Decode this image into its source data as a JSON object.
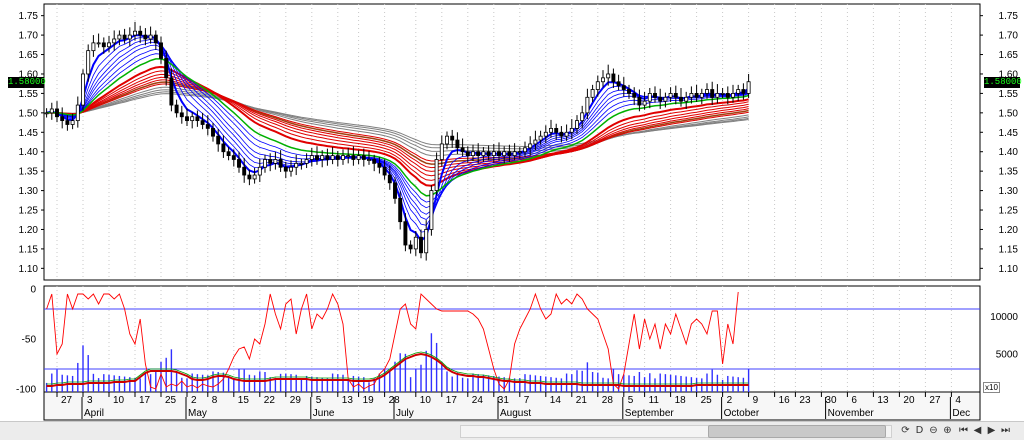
{
  "chart_data": [
    {
      "type": "candlestick",
      "title": "",
      "indicator": "GMMA",
      "last_price_label": "1.58000",
      "y_ticks": [
        "1.75",
        "1.70",
        "1.65",
        "1.60",
        "1.55",
        "1.50",
        "1.45",
        "1.40",
        "1.35",
        "1.30",
        "1.25",
        "1.20",
        "1.15",
        "1.10"
      ],
      "ylim": [
        1.07,
        1.78
      ],
      "grid": "vertical dotted",
      "close": [
        1.5,
        1.51,
        1.49,
        1.48,
        1.47,
        1.48,
        1.52,
        1.6,
        1.66,
        1.68,
        1.68,
        1.67,
        1.68,
        1.69,
        1.7,
        1.69,
        1.7,
        1.71,
        1.7,
        1.69,
        1.7,
        1.68,
        1.64,
        1.59,
        1.52,
        1.5,
        1.49,
        1.48,
        1.49,
        1.48,
        1.47,
        1.46,
        1.44,
        1.42,
        1.4,
        1.39,
        1.38,
        1.36,
        1.34,
        1.33,
        1.34,
        1.36,
        1.38,
        1.37,
        1.38,
        1.36,
        1.35,
        1.36,
        1.37,
        1.37,
        1.38,
        1.39,
        1.38,
        1.39,
        1.38,
        1.39,
        1.38,
        1.39,
        1.39,
        1.38,
        1.39,
        1.38,
        1.38,
        1.37,
        1.36,
        1.34,
        1.32,
        1.28,
        1.22,
        1.16,
        1.15,
        1.18,
        1.14,
        1.2,
        1.3,
        1.38,
        1.42,
        1.44,
        1.43,
        1.41,
        1.4,
        1.39,
        1.4,
        1.39,
        1.4,
        1.39,
        1.4,
        1.39,
        1.4,
        1.39,
        1.4,
        1.4,
        1.41,
        1.42,
        1.43,
        1.44,
        1.45,
        1.46,
        1.45,
        1.44,
        1.45,
        1.46,
        1.48,
        1.5,
        1.54,
        1.56,
        1.58,
        1.59,
        1.6,
        1.58,
        1.57,
        1.56,
        1.55,
        1.54,
        1.52,
        1.53,
        1.55,
        1.54,
        1.53,
        1.54,
        1.55,
        1.54,
        1.53,
        1.54,
        1.55,
        1.54,
        1.55,
        1.56,
        1.54,
        1.55,
        1.55,
        1.54,
        1.55,
        1.56,
        1.55,
        1.58
      ],
      "short_emas": [
        "ema3",
        "ema5",
        "ema8",
        "ema10",
        "ema12",
        "ema15"
      ],
      "long_emas": [
        "ema30",
        "ema35",
        "ema40",
        "ema45",
        "ema50",
        "ema60"
      ]
    },
    {
      "type": "line",
      "indicator": "oscillator",
      "y_ticks_left": [
        "0",
        "-50",
        "-100"
      ],
      "ylim_left": [
        -103,
        3
      ],
      "y_ticks_right": [
        "10000",
        "5000"
      ],
      "ylim_right": [
        0,
        14000
      ],
      "volume_multiplier_label": "x10",
      "reference_lines": [
        -20,
        -80
      ],
      "oscillator": [
        -20,
        -5,
        -65,
        -55,
        -5,
        -20,
        -5,
        -5,
        -10,
        -5,
        -15,
        -5,
        -5,
        -10,
        -5,
        -20,
        -45,
        -55,
        -30,
        -75,
        -98,
        -100,
        -85,
        -98,
        -95,
        -97,
        -92,
        -98,
        -96,
        -99,
        -95,
        -97,
        -98,
        -95,
        -90,
        -80,
        -68,
        -60,
        -58,
        -70,
        -50,
        -55,
        -35,
        -5,
        -25,
        -40,
        -15,
        -10,
        -45,
        -20,
        -5,
        -40,
        -25,
        -30,
        -20,
        -5,
        -15,
        -35,
        -90,
        -98,
        -95,
        -100,
        -97,
        -95,
        -85,
        -80,
        -70,
        -45,
        -20,
        -15,
        -35,
        -40,
        -5,
        -10,
        -15,
        -20,
        -22,
        -22,
        -22,
        -22,
        -22,
        -22,
        -25,
        -30,
        -40,
        -60,
        -80,
        -95,
        -100,
        -90,
        -55,
        -40,
        -30,
        -20,
        -5,
        -20,
        -30,
        -25,
        -5,
        -15,
        -10,
        -15,
        -5,
        -10,
        -20,
        -25,
        -30,
        -45,
        -60,
        -95,
        -100,
        -85,
        -55,
        -25,
        -60,
        -30,
        -50,
        -35,
        -60,
        -35,
        -45,
        -25,
        -40,
        -55,
        -35,
        -30,
        -35,
        -45,
        -22,
        -22,
        -75,
        -35,
        -55,
        -3
      ],
      "signal": [
        -97,
        -97,
        -96,
        -96,
        -95,
        -95,
        -95,
        -95,
        -94,
        -94,
        -94,
        -94,
        -94,
        -93,
        -93,
        -93,
        -92,
        -92,
        -88,
        -84,
        -82,
        -82,
        -82,
        -82,
        -82,
        -83,
        -85,
        -87,
        -90,
        -91,
        -91,
        -90,
        -88,
        -87,
        -87,
        -88,
        -90,
        -91,
        -92,
        -92,
        -92,
        -92,
        -92,
        -91,
        -90,
        -90,
        -90,
        -90,
        -90,
        -90,
        -90,
        -91,
        -91,
        -91,
        -91,
        -91,
        -91,
        -91,
        -91,
        -92,
        -92,
        -92,
        -92,
        -91,
        -89,
        -86,
        -82,
        -78,
        -74,
        -70,
        -68,
        -66,
        -65,
        -66,
        -68,
        -71,
        -75,
        -80,
        -83,
        -85,
        -86,
        -87,
        -87,
        -88,
        -88,
        -89,
        -90,
        -91,
        -92,
        -92,
        -93,
        -93,
        -93,
        -94,
        -94,
        -94,
        -95,
        -95,
        -95,
        -95,
        -95,
        -95,
        -95,
        -96,
        -96,
        -96,
        -96,
        -96,
        -96,
        -96,
        -96,
        -97,
        -97,
        -97,
        -97,
        -97,
        -97,
        -97,
        -97,
        -97,
        -97,
        -97,
        -97,
        -97,
        -97,
        -96,
        -96,
        -96,
        -96,
        -96,
        -96,
        -96,
        -96,
        -96,
        -96,
        -96
      ]
    }
  ],
  "x_axis": {
    "day_ticks": [
      {
        "label": "27",
        "i": 2
      },
      {
        "label": "3",
        "i": 7
      },
      {
        "label": "10",
        "i": 12
      },
      {
        "label": "17",
        "i": 17
      },
      {
        "label": "25",
        "i": 22
      },
      {
        "label": "2",
        "i": 27
      },
      {
        "label": "8",
        "i": 31
      },
      {
        "label": "15",
        "i": 36
      },
      {
        "label": "22",
        "i": 41
      },
      {
        "label": "29",
        "i": 46
      },
      {
        "label": "5",
        "i": 51
      },
      {
        "label": "13",
        "i": 56
      },
      {
        "label": "19",
        "i": 60
      },
      {
        "label": "28",
        "i": 65
      },
      {
        "label": "10",
        "i": 71
      },
      {
        "label": "17",
        "i": 76
      },
      {
        "label": "24",
        "i": 81
      },
      {
        "label": "31",
        "i": 86
      },
      {
        "label": "7",
        "i": 91
      },
      {
        "label": "14",
        "i": 96
      },
      {
        "label": "21",
        "i": 101
      },
      {
        "label": "28",
        "i": 106
      },
      {
        "label": "5",
        "i": 111
      },
      {
        "label": "11",
        "i": 115
      },
      {
        "label": "18",
        "i": 120
      },
      {
        "label": "25",
        "i": 125
      },
      {
        "label": "2",
        "i": 130
      },
      {
        "label": "9",
        "i": 135
      },
      {
        "label": "16",
        "i": 140
      },
      {
        "label": "23",
        "i": 144
      },
      {
        "label": "30",
        "i": 149
      },
      {
        "label": "6",
        "i": 154
      },
      {
        "label": "13",
        "i": 159
      },
      {
        "label": "20",
        "i": 164
      },
      {
        "label": "27",
        "i": 169
      },
      {
        "label": "4",
        "i": 174
      }
    ],
    "month_labels": [
      {
        "label": "April",
        "i": 7
      },
      {
        "label": "May",
        "i": 27
      },
      {
        "label": "June",
        "i": 51
      },
      {
        "label": "July",
        "i": 67
      },
      {
        "label": "August",
        "i": 87
      },
      {
        "label": "September",
        "i": 111
      },
      {
        "label": "October",
        "i": 130
      },
      {
        "label": "November",
        "i": 150
      },
      {
        "label": "Dec",
        "i": 174
      }
    ]
  },
  "colors": {
    "bull": "#000000",
    "short_ema": "#0000ff",
    "long_ema": "#e00000",
    "short_mid": "#00b000",
    "long_slow": "#808080",
    "oscillator": "#ff0000",
    "signal": "#cc0000",
    "ref_line": "#4040ff",
    "volume": "#3030ff",
    "price_badge_text": "#1bff1b"
  },
  "nav": {
    "icons": [
      "refresh-icon",
      "depth-icon",
      "zoom-out-icon",
      "zoom-in-icon",
      "first-icon",
      "prev-icon",
      "next-icon",
      "last-icon"
    ],
    "glyphs": [
      "⟳",
      "D",
      "⊖",
      "⊕",
      "⏮",
      "◀",
      "▶",
      "⏭"
    ]
  }
}
